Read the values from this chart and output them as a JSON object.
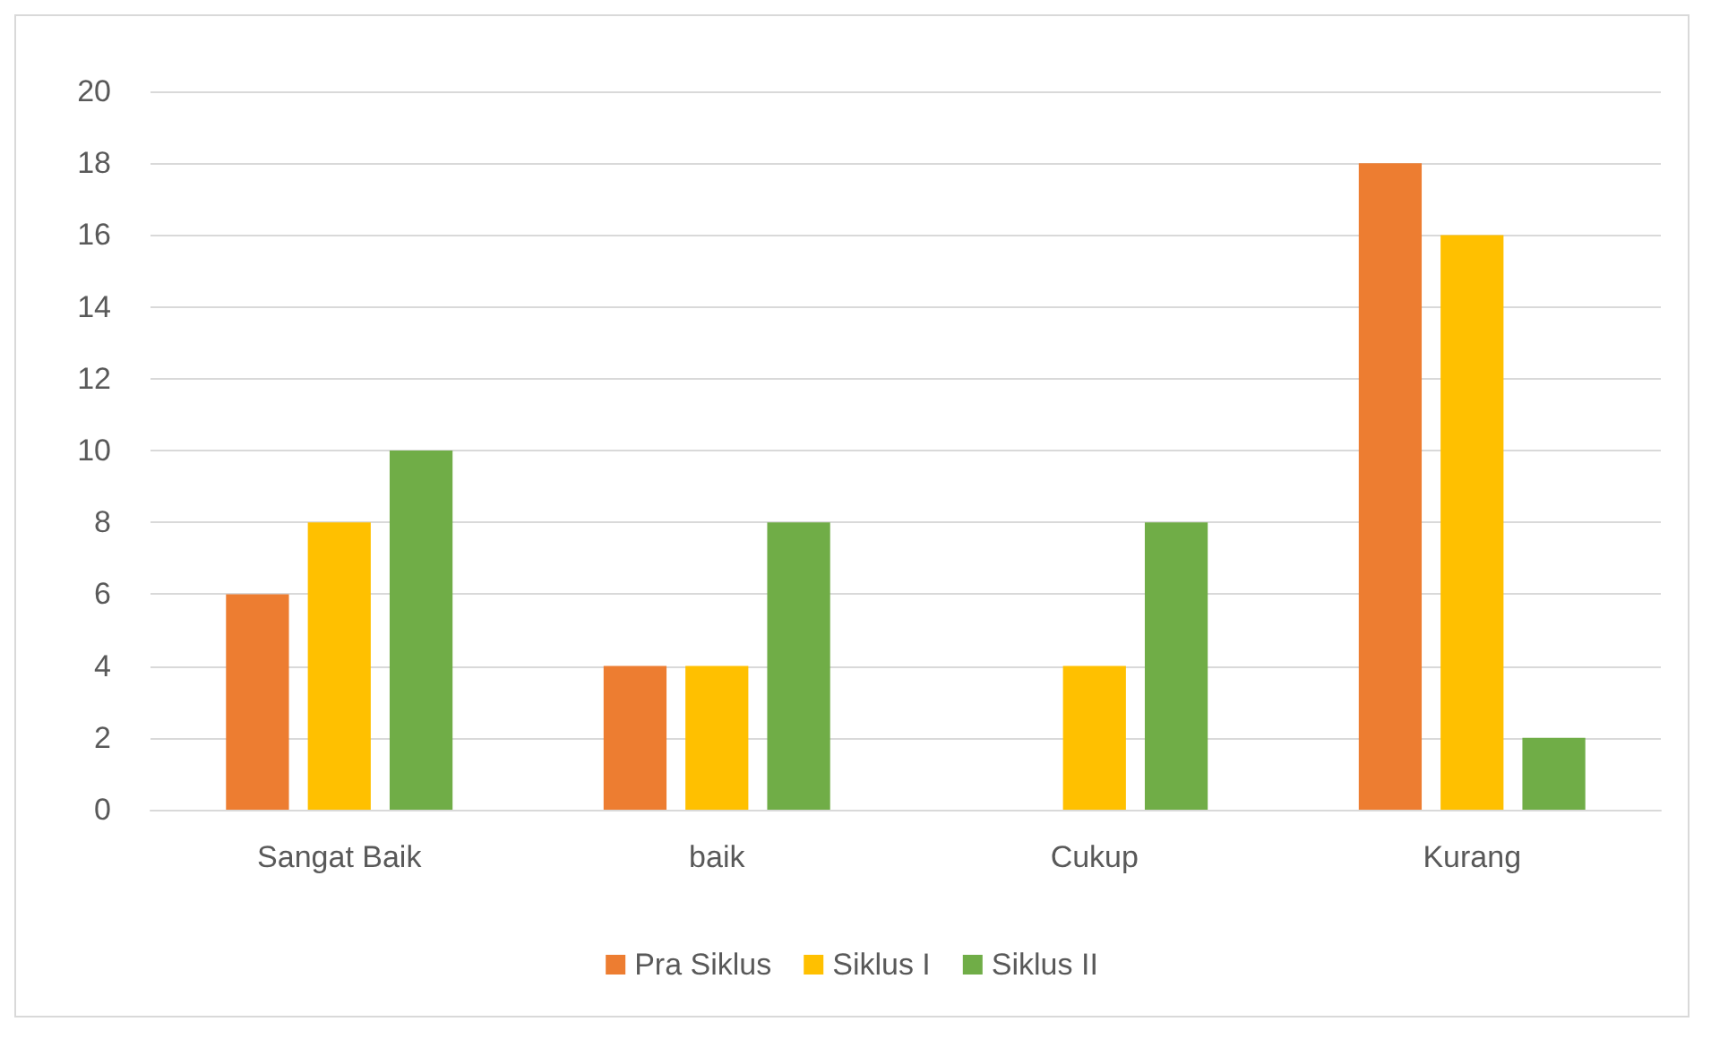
{
  "chart_data": {
    "type": "bar",
    "categories": [
      "Sangat Baik",
      "baik",
      "Cukup",
      "Kurang"
    ],
    "series": [
      {
        "name": "Pra Siklus",
        "color": "#ed7d31",
        "values": [
          6,
          4,
          0,
          18
        ]
      },
      {
        "name": "Siklus I",
        "color": "#ffc000",
        "values": [
          8,
          4,
          4,
          16
        ]
      },
      {
        "name": "Siklus II",
        "color": "#70ad47",
        "values": [
          10,
          8,
          8,
          2
        ]
      }
    ],
    "ylim": [
      0,
      20
    ],
    "yticks": [
      0,
      2,
      4,
      6,
      8,
      10,
      12,
      14,
      16,
      18,
      20
    ],
    "grid": "y",
    "legend": "bottom"
  }
}
